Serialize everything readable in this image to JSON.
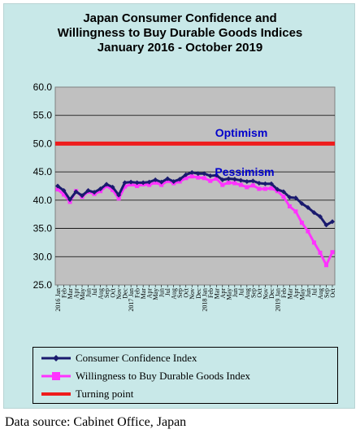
{
  "chart_data": {
    "type": "line",
    "title_lines": [
      "Japan Consumer Confidence and",
      "Willingness to Buy Durable Goods Indices",
      "January 2016 - October 2019"
    ],
    "ylim": [
      25,
      60
    ],
    "yticks": [
      "25.0",
      "30.0",
      "35.0",
      "40.0",
      "45.0",
      "50.0",
      "55.0",
      "60.0"
    ],
    "grid": true,
    "legend_position": "bottom",
    "annotations": [
      {
        "text": "Optimism",
        "color": "#0000cc"
      },
      {
        "text": "Pessimism",
        "color": "#0000cc"
      }
    ],
    "x_labels": [
      "2016 Jan",
      "Feb",
      "Mar",
      "Apr",
      "May",
      "Jun",
      "Jul",
      "Aug",
      "Sep",
      "Oct",
      "Nov",
      "Dec",
      "2017 Jan",
      "Feb",
      "Mar",
      "Apr",
      "May",
      "Jun",
      "Jul",
      "Aug",
      "Sep",
      "Oct",
      "Nov",
      "Dec",
      "2018 Jan",
      "Feb",
      "Mar",
      "Apr",
      "May",
      "Jun",
      "Jul",
      "Aug",
      "Sep",
      "Oct",
      "Nov",
      "Dec",
      "2019 Jan",
      "Feb",
      "Mar",
      "Apr",
      "May",
      "Jun",
      "Jul",
      "Aug",
      "Sep",
      "Oct"
    ],
    "series": [
      {
        "name": "Consumer Confidence Index",
        "color": "#1a1a6e",
        "marker": "diamond",
        "values": [
          42.5,
          41.7,
          40.1,
          41.5,
          40.8,
          41.7,
          41.4,
          42.0,
          42.8,
          42.3,
          40.9,
          43.1,
          43.2,
          43.1,
          43.1,
          43.2,
          43.6,
          43.2,
          43.8,
          43.3,
          43.7,
          44.5,
          44.9,
          44.7,
          44.7,
          44.3,
          44.4,
          43.6,
          43.8,
          43.7,
          43.5,
          43.3,
          43.4,
          43.0,
          42.9,
          42.9,
          41.9,
          41.5,
          40.5,
          40.4,
          39.4,
          38.7,
          37.8,
          37.1,
          35.6,
          36.2
        ]
      },
      {
        "name": "Willingness to Buy Durable Goods Index",
        "color": "#ff33ff",
        "marker": "square",
        "values": [
          41.9,
          41.0,
          39.7,
          41.6,
          40.6,
          41.5,
          41.1,
          41.6,
          42.5,
          41.8,
          40.3,
          42.4,
          42.8,
          42.5,
          42.8,
          42.7,
          43.1,
          42.7,
          43.4,
          43.0,
          43.3,
          43.9,
          44.2,
          44.0,
          43.9,
          43.4,
          43.8,
          42.7,
          43.1,
          43.0,
          42.7,
          42.3,
          42.6,
          42.0,
          42.0,
          42.1,
          41.6,
          40.6,
          38.9,
          38.0,
          36.0,
          34.5,
          32.5,
          30.7,
          28.5,
          30.8
        ]
      },
      {
        "name": "Turning point",
        "color": "#ee1c1c",
        "constant": 50
      }
    ]
  },
  "source": "Data source: Cabinet Office, Japan"
}
